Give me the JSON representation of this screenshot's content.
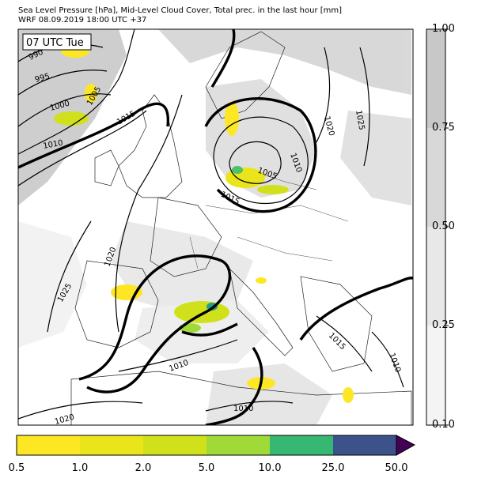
{
  "header": {
    "line1": "Sea Level Pressure [hPa], Mid-Level Cloud Cover, Total prec. in the last hour [mm]",
    "line2": "WRF 08.09.2019 18:00 UTC +37"
  },
  "map": {
    "time_label": "07 UTC Tue",
    "isobar_labels": [
      "990",
      "995",
      "1000",
      "1005",
      "1010",
      "1015",
      "1005",
      "1010",
      "1015",
      "1020",
      "1025",
      "1020",
      "1025",
      "1010",
      "1015",
      "1010",
      "1010",
      "1020"
    ]
  },
  "cloud_colorbar": {
    "labels": [
      "1.00",
      "0.75",
      "0.50",
      "0.25",
      "0.10"
    ],
    "colors": [
      "#c8c8c8",
      "#d8d8d8",
      "#e8e8e8",
      "#f4f4f4"
    ]
  },
  "precip_colorbar": {
    "labels": [
      "0.5",
      "1.0",
      "2.0",
      "5.0",
      "10.0",
      "25.0",
      "50.0"
    ],
    "colors": [
      "#fde725",
      "#eae51a",
      "#d0e11c",
      "#a0da39",
      "#4ac16d",
      "#1fa187",
      "#365c8d",
      "#46327e",
      "#440154"
    ]
  }
}
